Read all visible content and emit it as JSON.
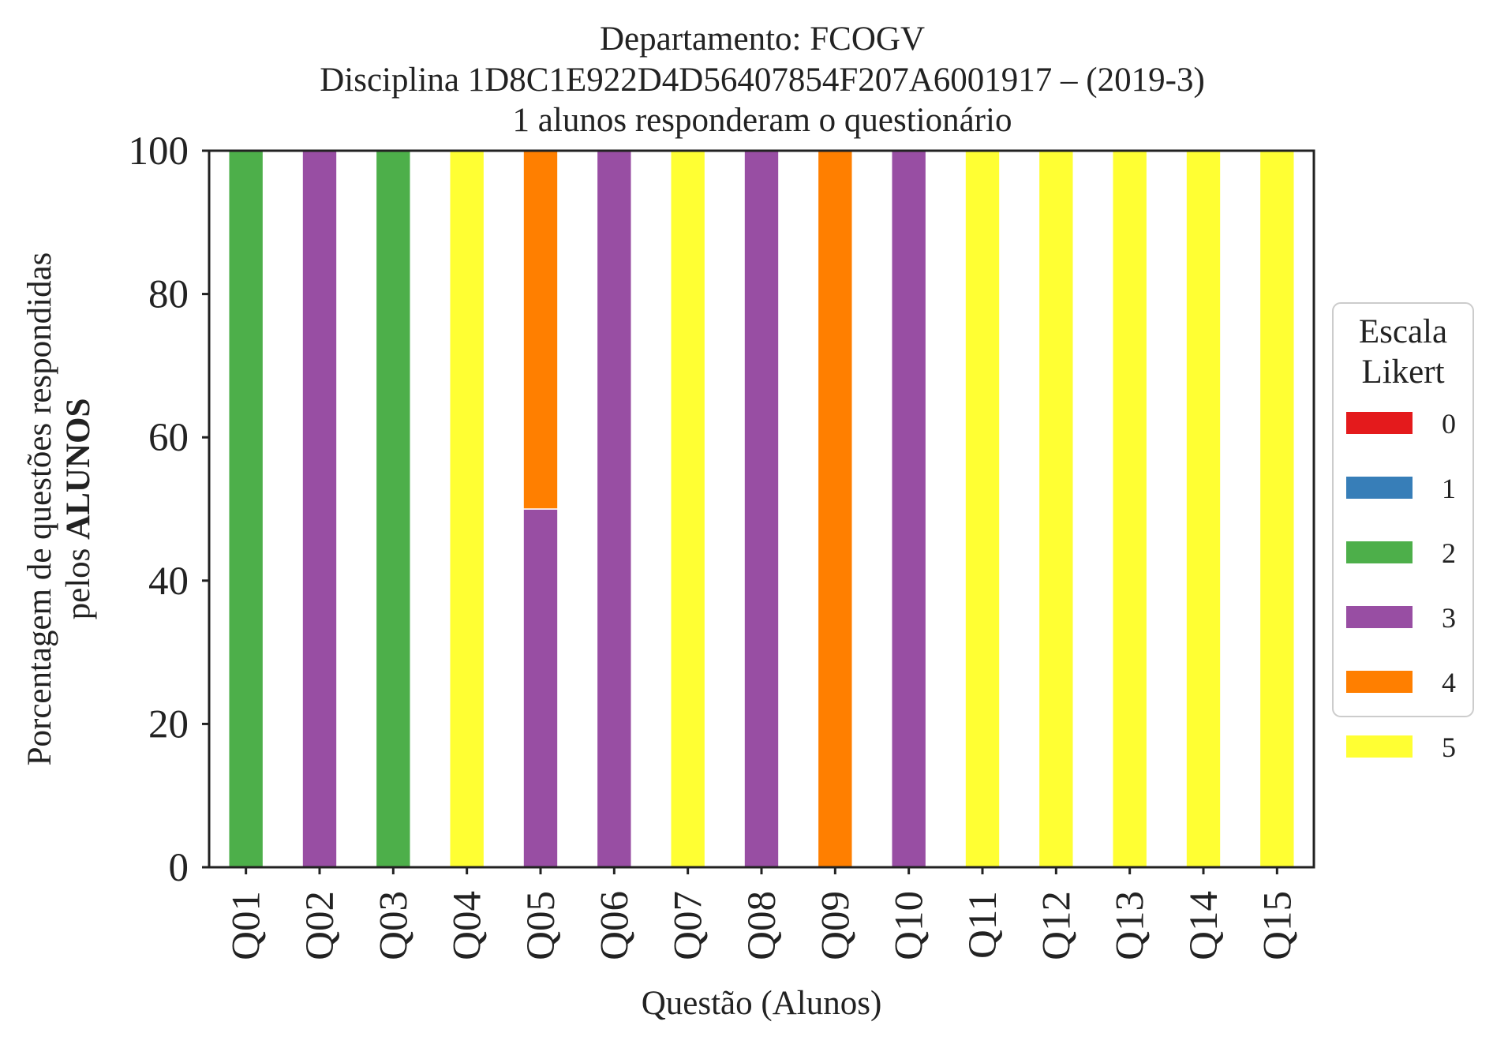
{
  "chart_data": {
    "type": "bar",
    "stacked": true,
    "title_lines": [
      "Departamento: FCOGV",
      "Disciplina 1D8C1E922D4D56407854F207A6001917 – (2019-3)",
      "1 alunos responderam o questionário"
    ],
    "xlabel": "Questão (Alunos)",
    "ylabel_line1": "Porcentagem de questões respondidas",
    "ylabel_line2_prefix": "pelos ",
    "ylabel_line2_bold": "ALUNOS",
    "ylim": [
      0,
      100
    ],
    "yticks": [
      0,
      20,
      40,
      60,
      80,
      100
    ],
    "categories": [
      "Q01",
      "Q02",
      "Q03",
      "Q04",
      "Q05",
      "Q06",
      "Q07",
      "Q08",
      "Q09",
      "Q10",
      "Q11",
      "Q12",
      "Q13",
      "Q14",
      "Q15"
    ],
    "legend": {
      "title_line1": "Escala",
      "title_line2": "Likert",
      "placement": "right"
    },
    "series": [
      {
        "name": "0",
        "color": "#e41a1c",
        "values": [
          0,
          0,
          0,
          0,
          0,
          0,
          0,
          0,
          0,
          0,
          0,
          0,
          0,
          0,
          0
        ]
      },
      {
        "name": "1",
        "color": "#377eb8",
        "values": [
          0,
          0,
          0,
          0,
          0,
          0,
          0,
          0,
          0,
          0,
          0,
          0,
          0,
          0,
          0
        ]
      },
      {
        "name": "2",
        "color": "#4daf4a",
        "values": [
          100,
          0,
          100,
          0,
          0,
          0,
          0,
          0,
          0,
          0,
          0,
          0,
          0,
          0,
          0
        ]
      },
      {
        "name": "3",
        "color": "#984ea3",
        "values": [
          0,
          100,
          0,
          0,
          50,
          100,
          0,
          100,
          0,
          100,
          0,
          0,
          0,
          0,
          0
        ]
      },
      {
        "name": "4",
        "color": "#ff7f00",
        "values": [
          0,
          0,
          0,
          0,
          50,
          0,
          0,
          0,
          100,
          0,
          0,
          0,
          0,
          0,
          0
        ]
      },
      {
        "name": "5",
        "color": "#ffff33",
        "values": [
          0,
          0,
          0,
          100,
          0,
          0,
          100,
          0,
          0,
          0,
          100,
          100,
          100,
          100,
          100
        ]
      }
    ],
    "grid": false
  }
}
